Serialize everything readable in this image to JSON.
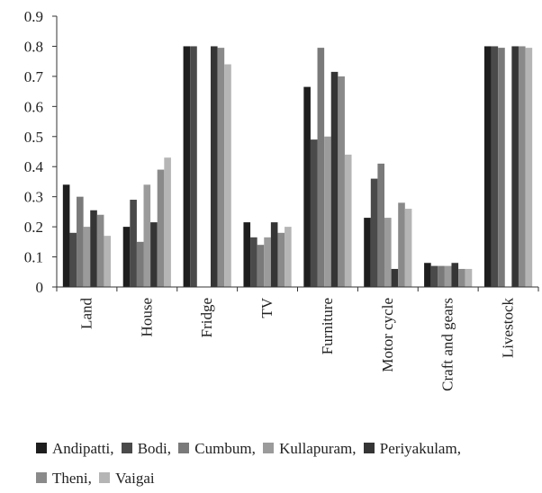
{
  "chart_data": {
    "type": "bar",
    "categories": [
      "Land",
      "House",
      "Fridge",
      "TV",
      "Furniture",
      "Motor cycle",
      "Craft and gears",
      "Livestock"
    ],
    "series": [
      {
        "name": "Andipatti",
        "color": "#1e1e1e",
        "values": [
          0.34,
          0.2,
          0.8,
          0.215,
          0.665,
          0.23,
          0.08,
          0.8
        ]
      },
      {
        "name": "Bodi",
        "color": "#4a4a4a",
        "values": [
          0.18,
          0.29,
          0.8,
          0.165,
          0.49,
          0.36,
          0.07,
          0.8
        ]
      },
      {
        "name": "Cumbum",
        "color": "#7a7a7a",
        "values": [
          0.3,
          0.15,
          0,
          0.14,
          0.795,
          0.41,
          0.07,
          0.795
        ]
      },
      {
        "name": "Kullapuram",
        "color": "#9b9b9b",
        "values": [
          0.2,
          0.34,
          0,
          0.165,
          0.5,
          0.23,
          0.07,
          0
        ]
      },
      {
        "name": "Periyakulam",
        "color": "#353535",
        "values": [
          0.255,
          0.215,
          0.8,
          0.215,
          0.715,
          0.06,
          0.08,
          0.8
        ]
      },
      {
        "name": "Theni",
        "color": "#8a8a8a",
        "values": [
          0.24,
          0.39,
          0.795,
          0.18,
          0.7,
          0.28,
          0.06,
          0.8
        ]
      },
      {
        "name": "Vaigai",
        "color": "#b5b5b5",
        "values": [
          0.17,
          0.43,
          0.74,
          0.2,
          0.44,
          0.26,
          0.06,
          0.795
        ]
      }
    ],
    "yticks": [
      "0",
      "0.1",
      "0.2",
      "0.3",
      "0.4",
      "0.5",
      "0.6",
      "0.7",
      "0.8",
      "0.9"
    ],
    "ylim": [
      0,
      0.9
    ],
    "grid": false,
    "legend_position": "bottom",
    "legend_labels": [
      "Andipatti,",
      "Bodi,",
      "Cumbum,",
      "Kullapuram,",
      "Periyakulam,",
      "Theni,",
      "Vaigai"
    ]
  }
}
